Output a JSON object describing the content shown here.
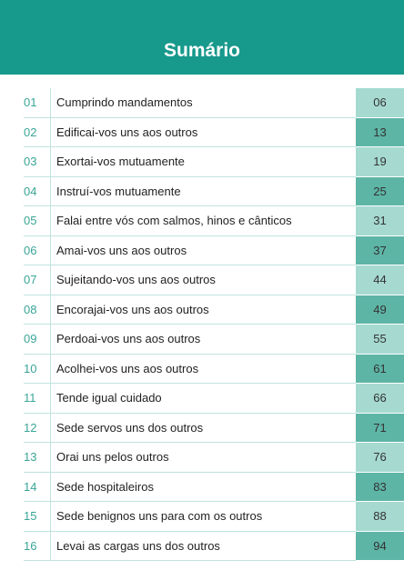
{
  "header": {
    "title": "Sumário"
  },
  "toc": [
    {
      "number": "01",
      "title": "Cumprindo mandamentos",
      "page": "06"
    },
    {
      "number": "02",
      "title": "Edificai-vos uns aos outros",
      "page": "13"
    },
    {
      "number": "03",
      "title": "Exortai-vos mutuamente",
      "page": "19"
    },
    {
      "number": "04",
      "title": "Instruí-vos mutuamente",
      "page": "25"
    },
    {
      "number": "05",
      "title": "Falai entre vós com salmos, hinos e cânticos",
      "page": "31"
    },
    {
      "number": "06",
      "title": "Amai-vos uns aos outros",
      "page": "37"
    },
    {
      "number": "07",
      "title": "Sujeitando-vos uns aos outros",
      "page": "44"
    },
    {
      "number": "08",
      "title": "Encorajai-vos uns aos outros",
      "page": "49"
    },
    {
      "number": "09",
      "title": "Perdoai-vos uns aos outros",
      "page": "55"
    },
    {
      "number": "10",
      "title": "Acolhei-vos uns aos outros",
      "page": "61"
    },
    {
      "number": "11",
      "title": "Tende igual cuidado",
      "page": "66"
    },
    {
      "number": "12",
      "title": "Sede servos uns dos outros",
      "page": "71"
    },
    {
      "number": "13",
      "title": "Orai uns pelos outros",
      "page": "76"
    },
    {
      "number": "14",
      "title": "Sede hospitaleiros",
      "page": "83"
    },
    {
      "number": "15",
      "title": "Sede benignos uns para com os outros",
      "page": "88"
    },
    {
      "number": "16",
      "title": "Levai as cargas uns dos outros",
      "page": "94"
    }
  ]
}
